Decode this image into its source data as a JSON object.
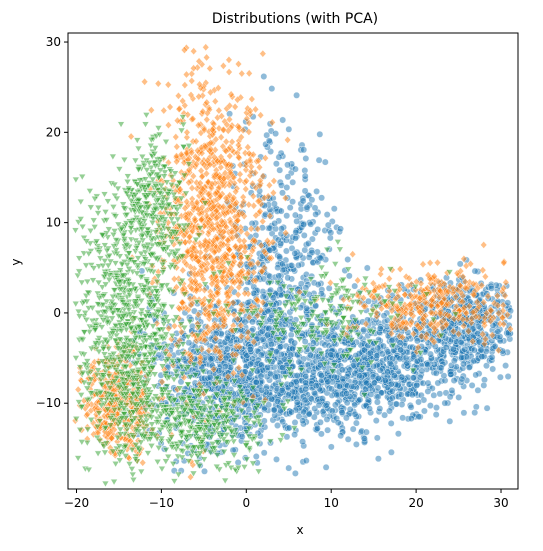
{
  "chart_data": {
    "type": "scatter",
    "title": "Distributions (with PCA)",
    "xlabel": "x",
    "ylabel": "y",
    "xlim": [
      -21,
      32
    ],
    "ylim": [
      -19.5,
      31
    ],
    "xticks": [
      -20,
      -10,
      0,
      10,
      20,
      30
    ],
    "yticks": [
      -10,
      0,
      10,
      20,
      30
    ],
    "grid": false,
    "legend": "none",
    "series": [
      {
        "color": "#1f77b4",
        "marker": "circle",
        "clusters": [
          {
            "cx": -2,
            "cy": -7,
            "sx": 5,
            "sy": 4,
            "n": 900
          },
          {
            "cx": 4,
            "cy": 5,
            "sx": 3,
            "sy": 7,
            "n": 500
          },
          {
            "cx": 17,
            "cy": -5,
            "sx": 6,
            "sy": 3,
            "n": 700
          },
          {
            "cx": 26,
            "cy": -1,
            "sx": 3,
            "sy": 2.5,
            "n": 400
          },
          {
            "cx": 10,
            "cy": -8,
            "sx": 5,
            "sy": 3,
            "n": 400
          }
        ]
      },
      {
        "color": "#ff7f0e",
        "marker": "diamond",
        "clusters": [
          {
            "cx": -4,
            "cy": 10,
            "sx": 3,
            "sy": 8,
            "n": 1000
          },
          {
            "cx": -15,
            "cy": -10,
            "sx": 2,
            "sy": 3,
            "n": 400
          },
          {
            "cx": 22,
            "cy": 1,
            "sx": 5,
            "sy": 2,
            "n": 350
          }
        ]
      },
      {
        "color": "#2ca02c",
        "marker": "triangle",
        "clusters": [
          {
            "cx": -14,
            "cy": -2,
            "sx": 3,
            "sy": 7,
            "n": 900
          },
          {
            "cx": -11,
            "cy": 12,
            "sx": 2,
            "sy": 4,
            "n": 300
          },
          {
            "cx": -6,
            "cy": -12,
            "sx": 4,
            "sy": 2.5,
            "n": 400
          },
          {
            "cx": 8,
            "cy": 0,
            "sx": 5,
            "sy": 3,
            "n": 200
          }
        ]
      }
    ]
  }
}
